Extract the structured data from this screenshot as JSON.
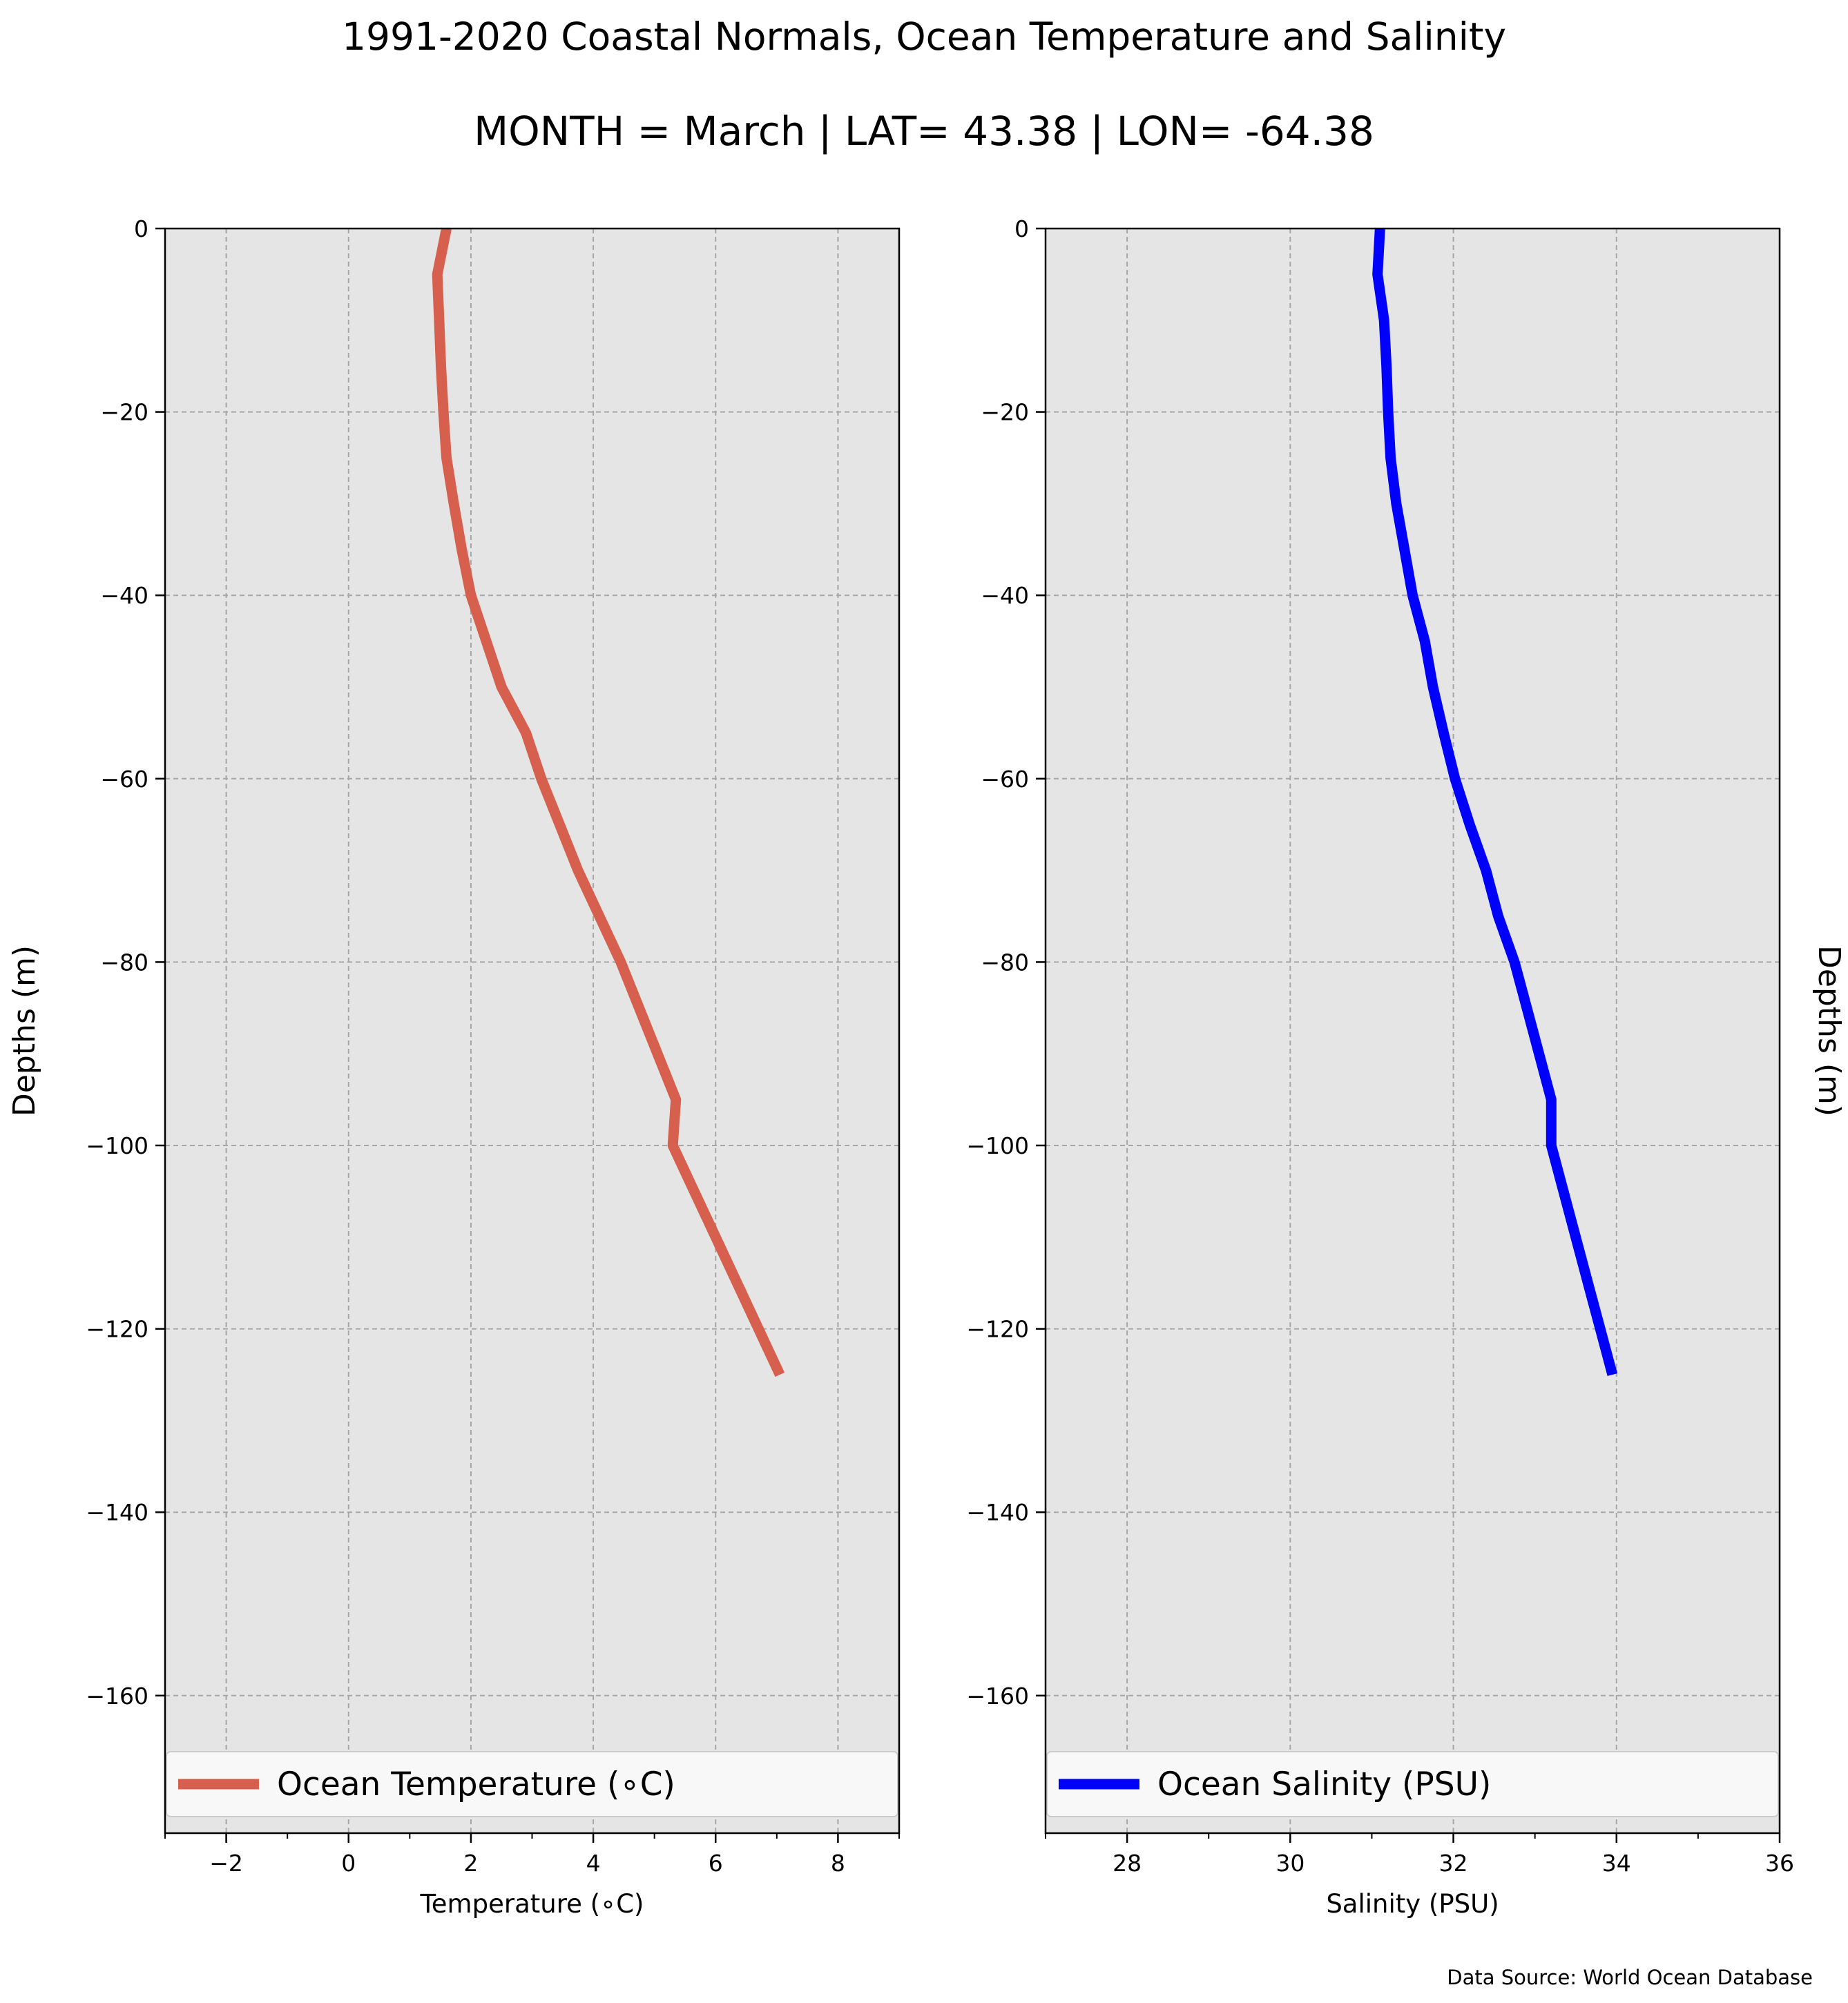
{
  "figure": {
    "title": "1991-2020 Coastal Normals, Ocean Temperature and Salinity",
    "subtitle": "MONTH = March | LAT= 43.38 | LON= -64.38",
    "source": "Data Source: World Ocean Database"
  },
  "chart_data": [
    {
      "type": "line",
      "xlabel": "Temperature (∘C)",
      "ylabel": "Depths (m)",
      "xlim": [
        -3,
        9
      ],
      "ylim": [
        -175,
        0
      ],
      "xticks": [
        -2,
        0,
        2,
        4,
        6,
        8
      ],
      "xtick_labels": [
        "−2",
        "0",
        "2",
        "4",
        "6",
        "8"
      ],
      "xminor_ticks": [
        -3,
        -1,
        1,
        3,
        5,
        7,
        9
      ],
      "yticks": [
        0,
        -20,
        -40,
        -60,
        -80,
        -100,
        -120,
        -140,
        -160
      ],
      "ytick_labels": [
        "0",
        "−20",
        "−40",
        "−60",
        "−80",
        "−100",
        "−120",
        "−140",
        "−160"
      ],
      "grid": true,
      "legend_placement": "lower center",
      "series": [
        {
          "name": "Ocean Temperature (∘C)",
          "color": "#d6604d",
          "depth": [
            0,
            -5,
            -10,
            -15,
            -20,
            -25,
            -30,
            -35,
            -40,
            -45,
            -50,
            -55,
            -60,
            -65,
            -70,
            -75,
            -80,
            -85,
            -90,
            -95,
            -100,
            -105,
            -110,
            -115,
            -120,
            -125
          ],
          "values": [
            1.6,
            1.45,
            1.48,
            1.51,
            1.55,
            1.6,
            1.72,
            1.85,
            2.0,
            2.25,
            2.5,
            2.9,
            3.15,
            3.45,
            3.75,
            4.1,
            4.45,
            4.75,
            5.05,
            5.35,
            5.3,
            5.65,
            6.0,
            6.35,
            6.7,
            7.05
          ]
        }
      ]
    },
    {
      "type": "line",
      "xlabel": "Salinity (PSU)",
      "ylabel": "Depths (m)",
      "xlim": [
        27,
        36
      ],
      "ylim": [
        -175,
        0
      ],
      "xticks": [
        28,
        30,
        32,
        34,
        36
      ],
      "xtick_labels": [
        "28",
        "30",
        "32",
        "34",
        "36"
      ],
      "xminor_ticks": [
        27,
        29,
        31,
        33,
        35
      ],
      "yticks": [
        0,
        -20,
        -40,
        -60,
        -80,
        -100,
        -120,
        -140,
        -160
      ],
      "ytick_labels": [
        "0",
        "−20",
        "−40",
        "−60",
        "−80",
        "−100",
        "−120",
        "−140",
        "−160"
      ],
      "grid": true,
      "legend_placement": "lower center",
      "series": [
        {
          "name": "Ocean Salinity (PSU)",
          "color": "#0000ff",
          "depth": [
            0,
            -5,
            -10,
            -15,
            -20,
            -25,
            -30,
            -35,
            -40,
            -45,
            -50,
            -55,
            -60,
            -65,
            -70,
            -75,
            -80,
            -85,
            -90,
            -95,
            -100,
            -105,
            -110,
            -115,
            -120,
            -125
          ],
          "values": [
            31.1,
            31.07,
            31.15,
            31.18,
            31.2,
            31.23,
            31.3,
            31.4,
            31.5,
            31.65,
            31.75,
            31.88,
            32.02,
            32.2,
            32.4,
            32.55,
            32.75,
            32.9,
            33.05,
            33.2,
            33.2,
            33.35,
            33.5,
            33.65,
            33.8,
            33.95
          ]
        }
      ]
    }
  ],
  "style": {
    "plot_bg": "#e5e5e5",
    "grid_color": "#a6a6a6",
    "legend_bg": "#f8f8f8",
    "legend_border": "#cccccc"
  }
}
